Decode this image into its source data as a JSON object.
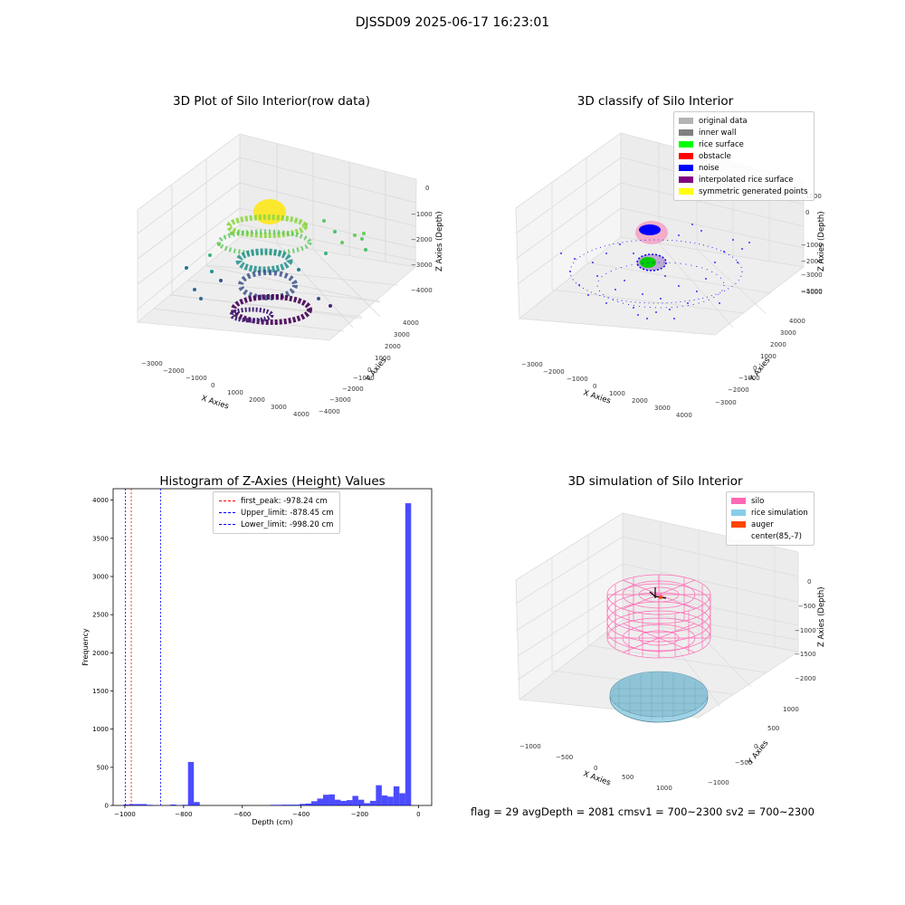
{
  "figure": {
    "suptitle": "DJSSD09 2025-06-17 16:23:01",
    "status_text": "flag = 29  avgDepth = 2081 cmsv1 = 700~2300  sv2 = 700~2300"
  },
  "panels": {
    "raw": {
      "title": "3D Plot of Silo Interior(row data)",
      "xlabel": "X Axies",
      "ylabel": "Y Axies",
      "zlabel": "Z Axies (Depth)",
      "xticks": [
        "−3000",
        "−2000",
        "−1000",
        "0",
        "1000",
        "2000",
        "3000",
        "4000"
      ],
      "yticks": [
        "4000",
        "3000",
        "2000",
        "1000",
        "0",
        "−1000",
        "−2000",
        "−3000",
        "−4000"
      ],
      "zticks": [
        "0",
        "−1000",
        "−2000",
        "−3000",
        "−4000"
      ]
    },
    "classify": {
      "title": "3D classify of Silo Interior",
      "xlabel": "X Axies",
      "ylabel": "Y Axies",
      "zlabel": "Z Axies (Depth)",
      "xticks": [
        "−3000",
        "−2000",
        "−1000",
        "0",
        "1000",
        "2000",
        "3000",
        "4000"
      ],
      "yticks": [
        "4000",
        "3000",
        "2000",
        "1000",
        "0",
        "−1000",
        "−2000",
        "−3000"
      ],
      "zticks": [
        "1000",
        "0",
        "−1000",
        "−2000",
        "−3000",
        "−4000",
        "−5000"
      ],
      "legend": [
        {
          "label": "original data",
          "color": "#b3b3b3"
        },
        {
          "label": "inner wall",
          "color": "#808080"
        },
        {
          "label": "rice surface",
          "color": "#00ff00"
        },
        {
          "label": "obstacle",
          "color": "#ff0000"
        },
        {
          "label": "noise",
          "color": "#0000ff"
        },
        {
          "label": "interpolated rice surface",
          "color": "#800080"
        },
        {
          "label": "symmetric generated points",
          "color": "#ffff00"
        }
      ]
    },
    "simulation": {
      "title": "3D simulation of Silo Interior",
      "xlabel": "X Axies",
      "ylabel": "Y Axies",
      "zlabel": "Z Axies (Depth)",
      "xticks": [
        "−1000",
        "−500",
        "0",
        "500",
        "1000"
      ],
      "yticks": [
        "1000",
        "500",
        "0",
        "−500",
        "−1000"
      ],
      "zticks": [
        "0",
        "−500",
        "−1000",
        "−1500",
        "−2000"
      ],
      "legend": [
        {
          "label": "silo",
          "color": "#ff69b4"
        },
        {
          "label": "rice simulation",
          "color": "#87ceeb"
        },
        {
          "label": "auger",
          "color": "#ff4500"
        },
        {
          "label": "center(85,-7)",
          "color": "#ffffff"
        }
      ]
    }
  },
  "chart_data": {
    "type": "bar",
    "title": "Histogram of Z-Axies (Height) Values",
    "xlabel": "Depth (cm)",
    "ylabel": "Frequency",
    "xlim": [
      -1040,
      45
    ],
    "ylim": [
      0,
      4150
    ],
    "xticks": [
      -1000,
      -800,
      -600,
      -400,
      -200,
      0
    ],
    "xtick_labels": [
      "−1000",
      "−800",
      "−600",
      "−400",
      "−200",
      "0"
    ],
    "yticks": [
      0,
      500,
      1000,
      1500,
      2000,
      2500,
      3000,
      3500,
      4000
    ],
    "bar_color": "#0000ff",
    "bin_width": 20,
    "bins": [
      {
        "x": -995,
        "v": 12
      },
      {
        "x": -975,
        "v": 18
      },
      {
        "x": -955,
        "v": 18
      },
      {
        "x": -935,
        "v": 18
      },
      {
        "x": -915,
        "v": 8
      },
      {
        "x": -835,
        "v": 12
      },
      {
        "x": -795,
        "v": 8
      },
      {
        "x": -775,
        "v": 570
      },
      {
        "x": -755,
        "v": 45
      },
      {
        "x": -495,
        "v": 8
      },
      {
        "x": -475,
        "v": 8
      },
      {
        "x": -455,
        "v": 10
      },
      {
        "x": -435,
        "v": 10
      },
      {
        "x": -415,
        "v": 10
      },
      {
        "x": -395,
        "v": 20
      },
      {
        "x": -375,
        "v": 25
      },
      {
        "x": -355,
        "v": 55
      },
      {
        "x": -335,
        "v": 90
      },
      {
        "x": -315,
        "v": 140
      },
      {
        "x": -295,
        "v": 145
      },
      {
        "x": -275,
        "v": 75
      },
      {
        "x": -255,
        "v": 60
      },
      {
        "x": -235,
        "v": 70
      },
      {
        "x": -215,
        "v": 125
      },
      {
        "x": -195,
        "v": 75
      },
      {
        "x": -175,
        "v": 30
      },
      {
        "x": -155,
        "v": 60
      },
      {
        "x": -135,
        "v": 265
      },
      {
        "x": -115,
        "v": 130
      },
      {
        "x": -95,
        "v": 115
      },
      {
        "x": -75,
        "v": 250
      },
      {
        "x": -55,
        "v": 160
      },
      {
        "x": -35,
        "v": 3960
      }
    ],
    "vlines": [
      {
        "label": "first_peak: -978.24 cm",
        "x": -978.24,
        "color": "#ff0000"
      },
      {
        "label": "Upper_limit: -878.45 cm",
        "x": -878.45,
        "color": "#0000ff"
      },
      {
        "label": "Lower_limit: -998.20 cm",
        "x": -998.2,
        "color": "#0000ff"
      }
    ]
  }
}
